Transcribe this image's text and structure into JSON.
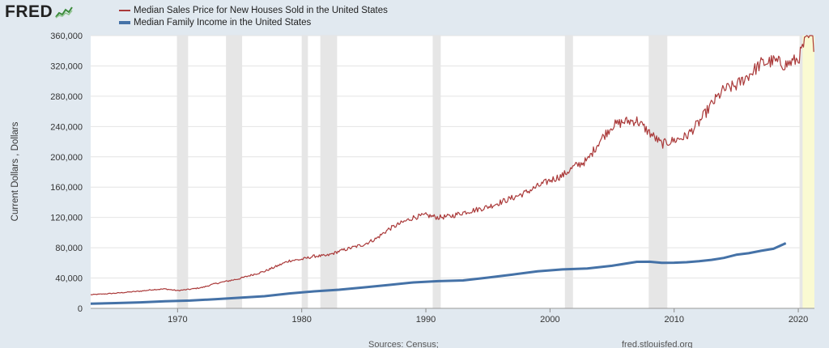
{
  "header": {
    "logo_text": "FRED",
    "logo_icon": "line-chart-icon"
  },
  "chart_data": {
    "type": "line",
    "title": "",
    "xlabel": "",
    "ylabel": "Current Dollars , Dollars",
    "xlim": [
      1963,
      2021.3
    ],
    "ylim": [
      0,
      360000
    ],
    "grid": true,
    "legend_position": "top-left",
    "x_ticks": [
      "1970",
      "1980",
      "1990",
      "2000",
      "2010",
      "2020"
    ],
    "y_ticks": [
      "0",
      "40,000",
      "80,000",
      "120,000",
      "160,000",
      "200,000",
      "240,000",
      "280,000",
      "320,000",
      "360,000"
    ],
    "recessions": [
      [
        1969.95,
        1970.85
      ],
      [
        1973.9,
        1975.2
      ],
      [
        1980.0,
        1980.5
      ],
      [
        1981.5,
        1982.85
      ],
      [
        1990.55,
        1991.2
      ],
      [
        2001.2,
        2001.85
      ],
      [
        2007.95,
        2009.45
      ],
      [
        2020.1,
        2020.35
      ]
    ],
    "shaded_current": [
      2020.1,
      2021.3
    ],
    "series": [
      {
        "name": "Median Sales Price for New Houses Sold in the United States",
        "color": "#aa3939",
        "frequency": "monthly",
        "x": [
          1963,
          1964,
          1965,
          1966,
          1967,
          1968,
          1969,
          1970,
          1971,
          1972,
          1973,
          1974,
          1975,
          1976,
          1977,
          1978,
          1979,
          1980,
          1981,
          1982,
          1983,
          1984,
          1985,
          1986,
          1987,
          1988,
          1989,
          1990,
          1991,
          1992,
          1993,
          1994,
          1995,
          1996,
          1997,
          1998,
          1999,
          2000,
          2001,
          2002,
          2003,
          2004,
          2005,
          2006,
          2007,
          2008,
          2009,
          2010,
          2011,
          2012,
          2013,
          2014,
          2015,
          2016,
          2017,
          2018,
          2019,
          2020,
          2020.5,
          2021,
          2021.25
        ],
        "values": [
          18000,
          18900,
          20000,
          21400,
          22700,
          24700,
          25600,
          23400,
          25200,
          27600,
          32500,
          35900,
          39300,
          44200,
          48800,
          55700,
          62900,
          64600,
          68900,
          69300,
          75300,
          79900,
          84300,
          92000,
          104500,
          112500,
          120000,
          122900,
          120000,
          121500,
          126500,
          130000,
          133900,
          140000,
          146000,
          152500,
          161000,
          169000,
          175200,
          187600,
          195000,
          221000,
          240900,
          246500,
          247900,
          232100,
          216700,
          221800,
          227200,
          245200,
          268900,
          288500,
          294200,
          307800,
          323100,
          326400,
          321500,
          329000,
          350000,
          360000,
          348000
        ]
      },
      {
        "name": "Median Family Income in the United States",
        "color": "#4572a7",
        "frequency": "annual",
        "x": [
          1963,
          1965,
          1967,
          1969,
          1971,
          1973,
          1975,
          1977,
          1979,
          1981,
          1983,
          1985,
          1987,
          1989,
          1991,
          1993,
          1995,
          1997,
          1999,
          2001,
          2003,
          2005,
          2007,
          2008,
          2009,
          2010,
          2011,
          2012,
          2013,
          2014,
          2015,
          2016,
          2017,
          2018,
          2019
        ],
        "values": [
          6200,
          6900,
          7900,
          9400,
          10300,
          12100,
          14000,
          16000,
          19700,
          22400,
          24600,
          27700,
          30900,
          34200,
          35900,
          36900,
          40600,
          44600,
          48800,
          51400,
          52700,
          56200,
          61400,
          61500,
          60100,
          60200,
          60900,
          62200,
          64000,
          66600,
          70700,
          72700,
          75900,
          78600,
          86000
        ]
      }
    ]
  },
  "footer": {
    "sources_text": "Sources: Census;",
    "site_text": "fred.stlouisfed.org"
  }
}
